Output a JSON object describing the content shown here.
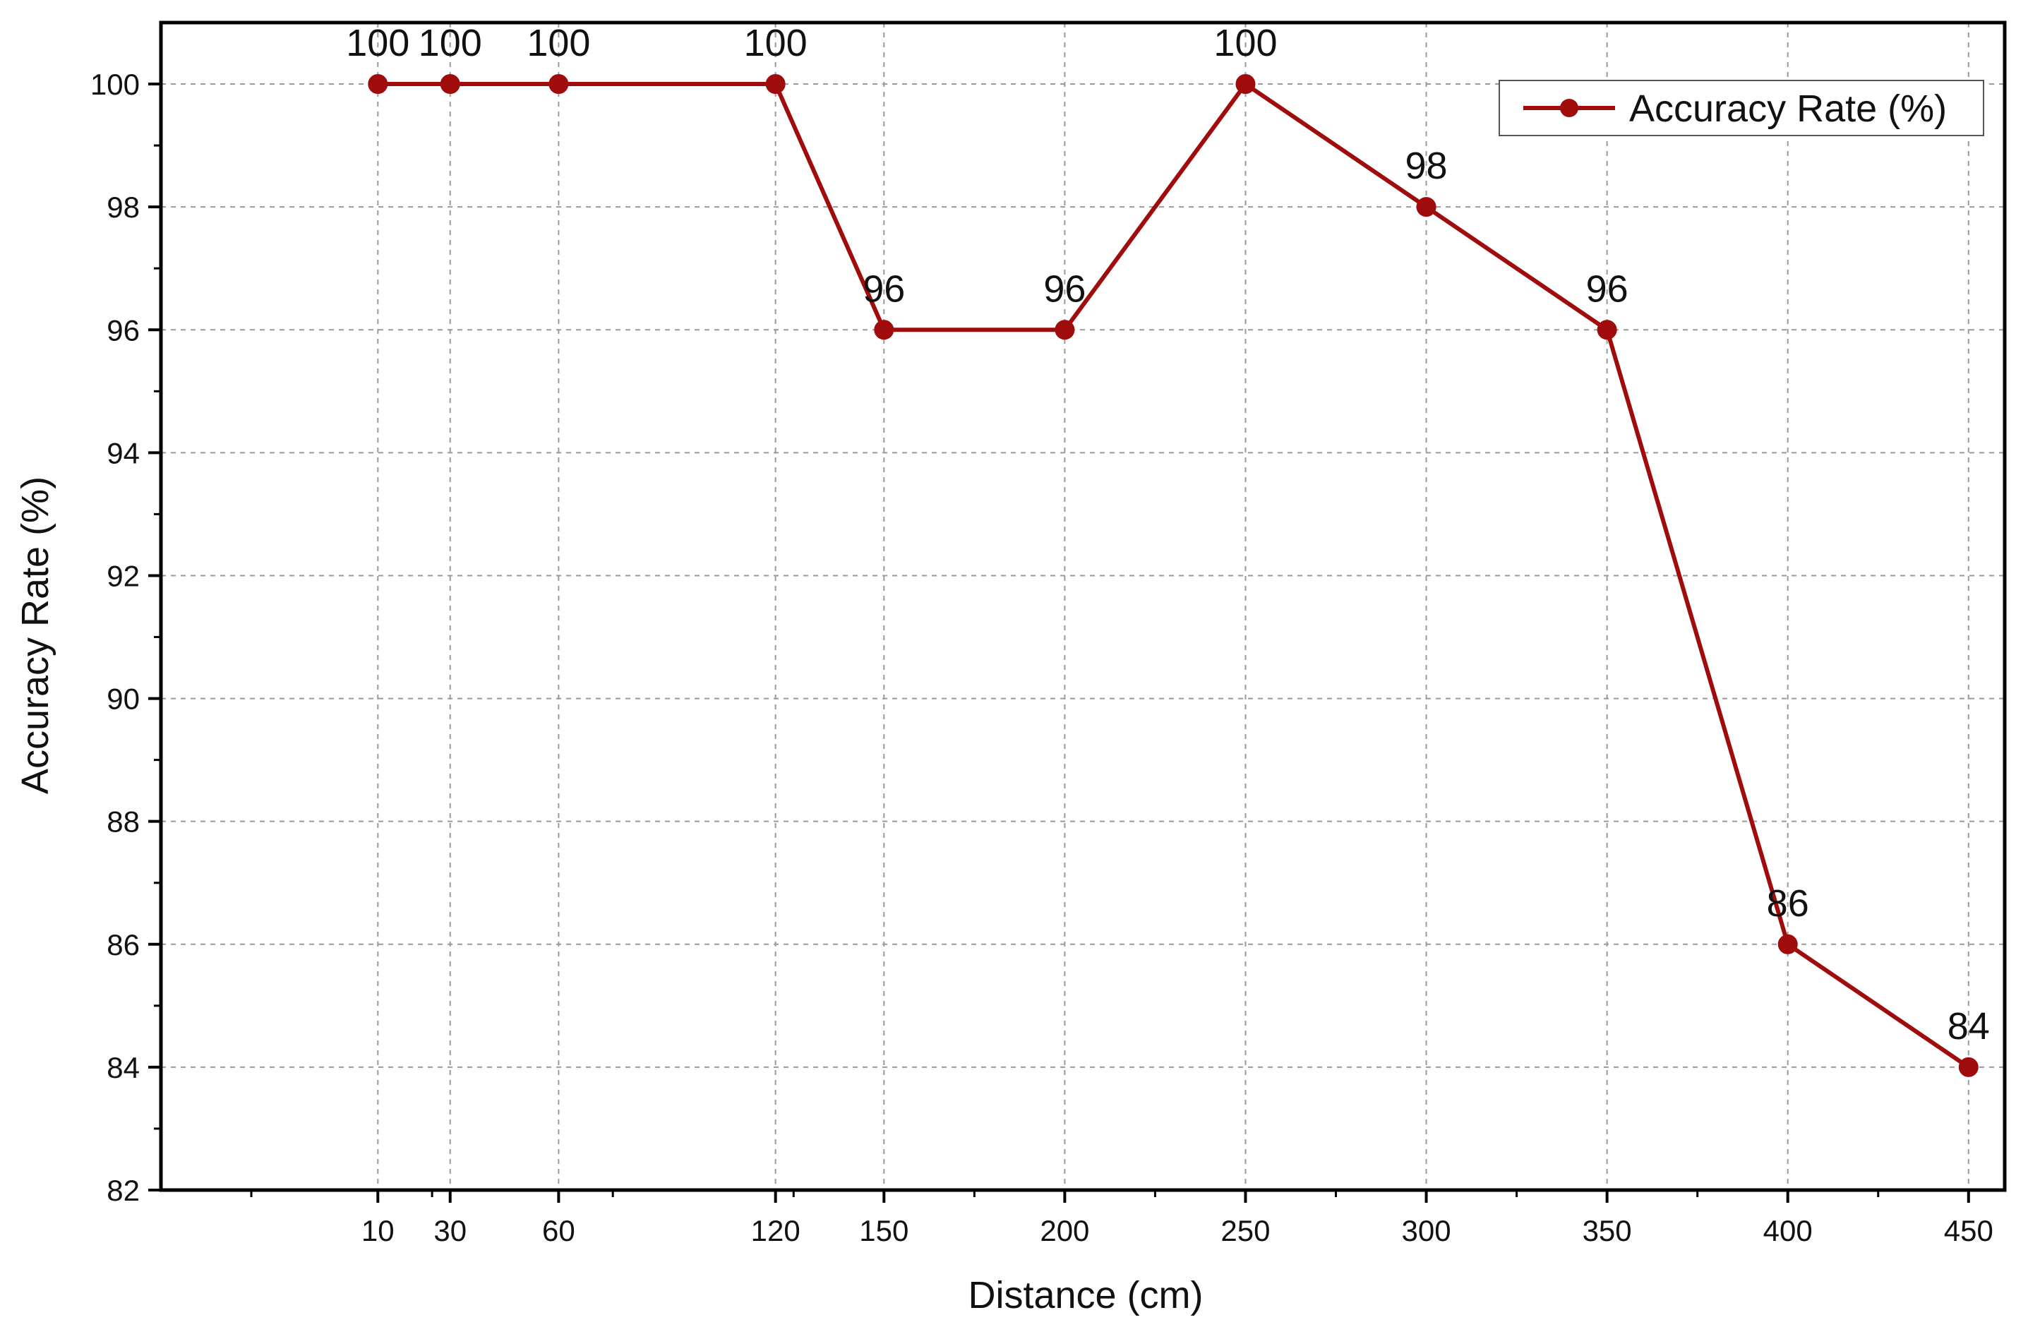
{
  "chart_data": {
    "type": "line",
    "xlabel": "Distance (cm)",
    "ylabel": "Accuracy Rate (%)",
    "xlim": [
      -50,
      460
    ],
    "ylim": [
      82,
      101
    ],
    "x_ticks": [
      10,
      30,
      60,
      120,
      150,
      200,
      250,
      300,
      350,
      400,
      450
    ],
    "y_ticks": [
      82,
      84,
      86,
      88,
      90,
      92,
      94,
      96,
      98,
      100
    ],
    "grid": true,
    "legend_position": "top-right",
    "series": [
      {
        "name": "Accuracy Rate (%)",
        "color": "#a00c0c",
        "x": [
          10,
          30,
          60,
          120,
          150,
          200,
          250,
          300,
          350,
          400,
          450
        ],
        "y": [
          100,
          100,
          100,
          100,
          96,
          96,
          100,
          98,
          96,
          86,
          84
        ]
      }
    ]
  }
}
